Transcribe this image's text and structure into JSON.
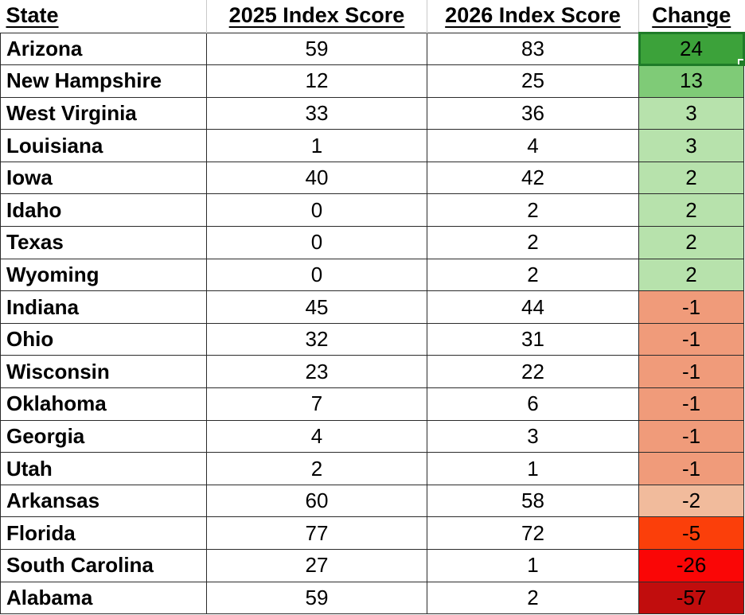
{
  "table": {
    "columns": [
      {
        "id": "state",
        "label": "State"
      },
      {
        "id": "score_2025",
        "label": "2025 Index Score"
      },
      {
        "id": "score_2026",
        "label": "2026 Index Score"
      },
      {
        "id": "change",
        "label": "Change"
      }
    ],
    "rows": [
      {
        "state": "Arizona",
        "score_2025": 59,
        "score_2026": 83,
        "change": 24,
        "change_bg": "#3ca23a",
        "selected": true
      },
      {
        "state": "New Hampshire",
        "score_2025": 12,
        "score_2026": 25,
        "change": 13,
        "change_bg": "#7fcb77",
        "selected": false
      },
      {
        "state": "West Virginia",
        "score_2025": 33,
        "score_2026": 36,
        "change": 3,
        "change_bg": "#b7e2ac",
        "selected": false
      },
      {
        "state": "Louisiana",
        "score_2025": 1,
        "score_2026": 4,
        "change": 3,
        "change_bg": "#b7e2ac",
        "selected": false
      },
      {
        "state": "Iowa",
        "score_2025": 40,
        "score_2026": 42,
        "change": 2,
        "change_bg": "#b7e2ac",
        "selected": false
      },
      {
        "state": "Idaho",
        "score_2025": 0,
        "score_2026": 2,
        "change": 2,
        "change_bg": "#b7e2ac",
        "selected": false
      },
      {
        "state": "Texas",
        "score_2025": 0,
        "score_2026": 2,
        "change": 2,
        "change_bg": "#b7e2ac",
        "selected": false
      },
      {
        "state": "Wyoming",
        "score_2025": 0,
        "score_2026": 2,
        "change": 2,
        "change_bg": "#b7e2ac",
        "selected": false
      },
      {
        "state": "Indiana",
        "score_2025": 45,
        "score_2026": 44,
        "change": -1,
        "change_bg": "#f09b7a",
        "selected": false
      },
      {
        "state": "Ohio",
        "score_2025": 32,
        "score_2026": 31,
        "change": -1,
        "change_bg": "#f09b7a",
        "selected": false
      },
      {
        "state": "Wisconsin",
        "score_2025": 23,
        "score_2026": 22,
        "change": -1,
        "change_bg": "#f09b7a",
        "selected": false
      },
      {
        "state": "Oklahoma",
        "score_2025": 7,
        "score_2026": 6,
        "change": -1,
        "change_bg": "#f09b7a",
        "selected": false
      },
      {
        "state": "Georgia",
        "score_2025": 4,
        "score_2026": 3,
        "change": -1,
        "change_bg": "#f09b7a",
        "selected": false
      },
      {
        "state": "Utah",
        "score_2025": 2,
        "score_2026": 1,
        "change": -1,
        "change_bg": "#f09b7a",
        "selected": false
      },
      {
        "state": "Arkansas",
        "score_2025": 60,
        "score_2026": 58,
        "change": -2,
        "change_bg": "#f1bb9c",
        "selected": false
      },
      {
        "state": "Florida",
        "score_2025": 77,
        "score_2026": 72,
        "change": -5,
        "change_bg": "#fb3f0a",
        "selected": false
      },
      {
        "state": "South Carolina",
        "score_2025": 27,
        "score_2026": 1,
        "change": -26,
        "change_bg": "#fa0606",
        "selected": false
      },
      {
        "state": "Alabama",
        "score_2025": 59,
        "score_2026": 2,
        "change": -57,
        "change_bg": "#c10d0d",
        "selected": false
      }
    ]
  },
  "colors": {
    "grid_border": "#2b2b2b",
    "header_separator": "#c9c9c9",
    "selection_border": "#1e7b28",
    "positive_strong": "#3ca23a",
    "positive_medium": "#7fcb77",
    "positive_light": "#b7e2ac",
    "negative_light": "#f09b7a",
    "negative_pale": "#f1bb9c",
    "negative_medium": "#fb3f0a",
    "negative_strong": "#fa0606",
    "negative_darkest": "#c10d0d",
    "text": "#000000",
    "background": "#ffffff"
  }
}
